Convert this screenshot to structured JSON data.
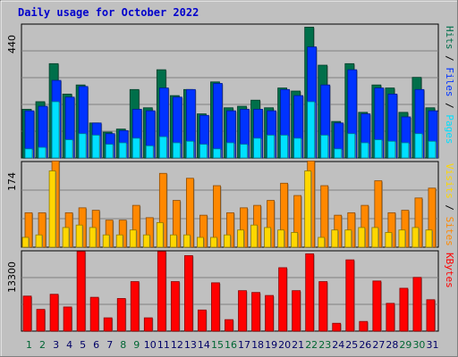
{
  "chart_data": {
    "type": "bar",
    "title": "Daily usage for October 2022",
    "categories": [
      "1",
      "2",
      "3",
      "4",
      "5",
      "6",
      "7",
      "8",
      "9",
      "10",
      "11",
      "12",
      "13",
      "14",
      "15",
      "16",
      "17",
      "18",
      "19",
      "20",
      "21",
      "22",
      "23",
      "24",
      "25",
      "26",
      "27",
      "28",
      "29",
      "30",
      "31"
    ],
    "weekend_days": [
      "1",
      "2",
      "8",
      "9",
      "15",
      "16",
      "22",
      "23",
      "29",
      "30"
    ],
    "colors": {
      "background": "#c0c0c0",
      "title": "#0000cc",
      "weekday_label": "#000066",
      "weekend_label": "#006633",
      "hits": "#006f4a",
      "files": "#0033ff",
      "pages": "#00e0ff",
      "visits": "#ffd700",
      "sites": "#ff8800",
      "kbytes": "#ff0000",
      "separator": "#000000"
    },
    "panels": [
      {
        "name": "hits-files-pages",
        "ymax": 440,
        "ylabel_parts": [
          {
            "text": "Hits",
            "color": "#006f4a"
          },
          {
            "text": " / ",
            "color": "#000000"
          },
          {
            "text": "Files",
            "color": "#0033ff"
          },
          {
            "text": " / ",
            "color": "#000000"
          },
          {
            "text": "Pages",
            "color": "#00e0ff"
          }
        ],
        "series": [
          {
            "name": "Hits",
            "color": "#006f4a",
            "values": [
              160,
              185,
              310,
              210,
              240,
              115,
              85,
              95,
              225,
              165,
              290,
              205,
              225,
              145,
              250,
              165,
              170,
              190,
              165,
              230,
              220,
              430,
              305,
              120,
              310,
              150,
              240,
              230,
              150,
              265,
              165
            ]
          },
          {
            "name": "Files",
            "color": "#0033ff",
            "values": [
              155,
              170,
              255,
              200,
              235,
              115,
              80,
              90,
              160,
              155,
              230,
              200,
              225,
              140,
              245,
              155,
              160,
              160,
              155,
              225,
              205,
              365,
              240,
              115,
              290,
              145,
              230,
              210,
              135,
              225,
              155
            ]
          },
          {
            "name": "Pages",
            "color": "#00e0ff",
            "values": [
              30,
              35,
              185,
              60,
              80,
              75,
              45,
              50,
              65,
              40,
              70,
              50,
              55,
              45,
              30,
              50,
              45,
              65,
              75,
              75,
              65,
              185,
              75,
              30,
              80,
              50,
              60,
              55,
              50,
              80,
              55
            ]
          }
        ]
      },
      {
        "name": "visits-sites",
        "ymax": 174,
        "ylabel_parts": [
          {
            "text": "Visits",
            "color": "#ffd700"
          },
          {
            "text": " / ",
            "color": "#000000"
          },
          {
            "text": "Sites",
            "color": "#ff8800"
          }
        ],
        "series": [
          {
            "name": "Visits",
            "color": "#ffd700",
            "values": [
              20,
              25,
              155,
              40,
              45,
              40,
              25,
              25,
              35,
              25,
              50,
              25,
              25,
              20,
              20,
              25,
              35,
              45,
              40,
              35,
              30,
              155,
              20,
              35,
              35,
              40,
              40,
              30,
              35,
              40,
              35
            ]
          },
          {
            "name": "Sites",
            "color": "#ff8800",
            "values": [
              70,
              70,
              175,
              70,
              80,
              75,
              55,
              55,
              85,
              60,
              150,
              95,
              140,
              65,
              125,
              70,
              80,
              85,
              95,
              130,
              105,
              175,
              125,
              65,
              70,
              85,
              135,
              70,
              75,
              100,
              120
            ]
          }
        ]
      },
      {
        "name": "kbytes",
        "ymax": 13300,
        "ylabel_parts": [
          {
            "text": "KBytes",
            "color": "#ff0000"
          }
        ],
        "series": [
          {
            "name": "KBytes",
            "color": "#ff0000",
            "values": [
              5800,
              3600,
              6100,
              4000,
              13200,
              5600,
              2200,
              5400,
              8200,
              2200,
              13200,
              8200,
              12500,
              3500,
              8000,
              1900,
              6700,
              6400,
              5900,
              10500,
              6700,
              12800,
              8200,
              1300,
              11800,
              1600,
              8300,
              4600,
              7100,
              8900,
              5200
            ]
          }
        ]
      }
    ]
  }
}
